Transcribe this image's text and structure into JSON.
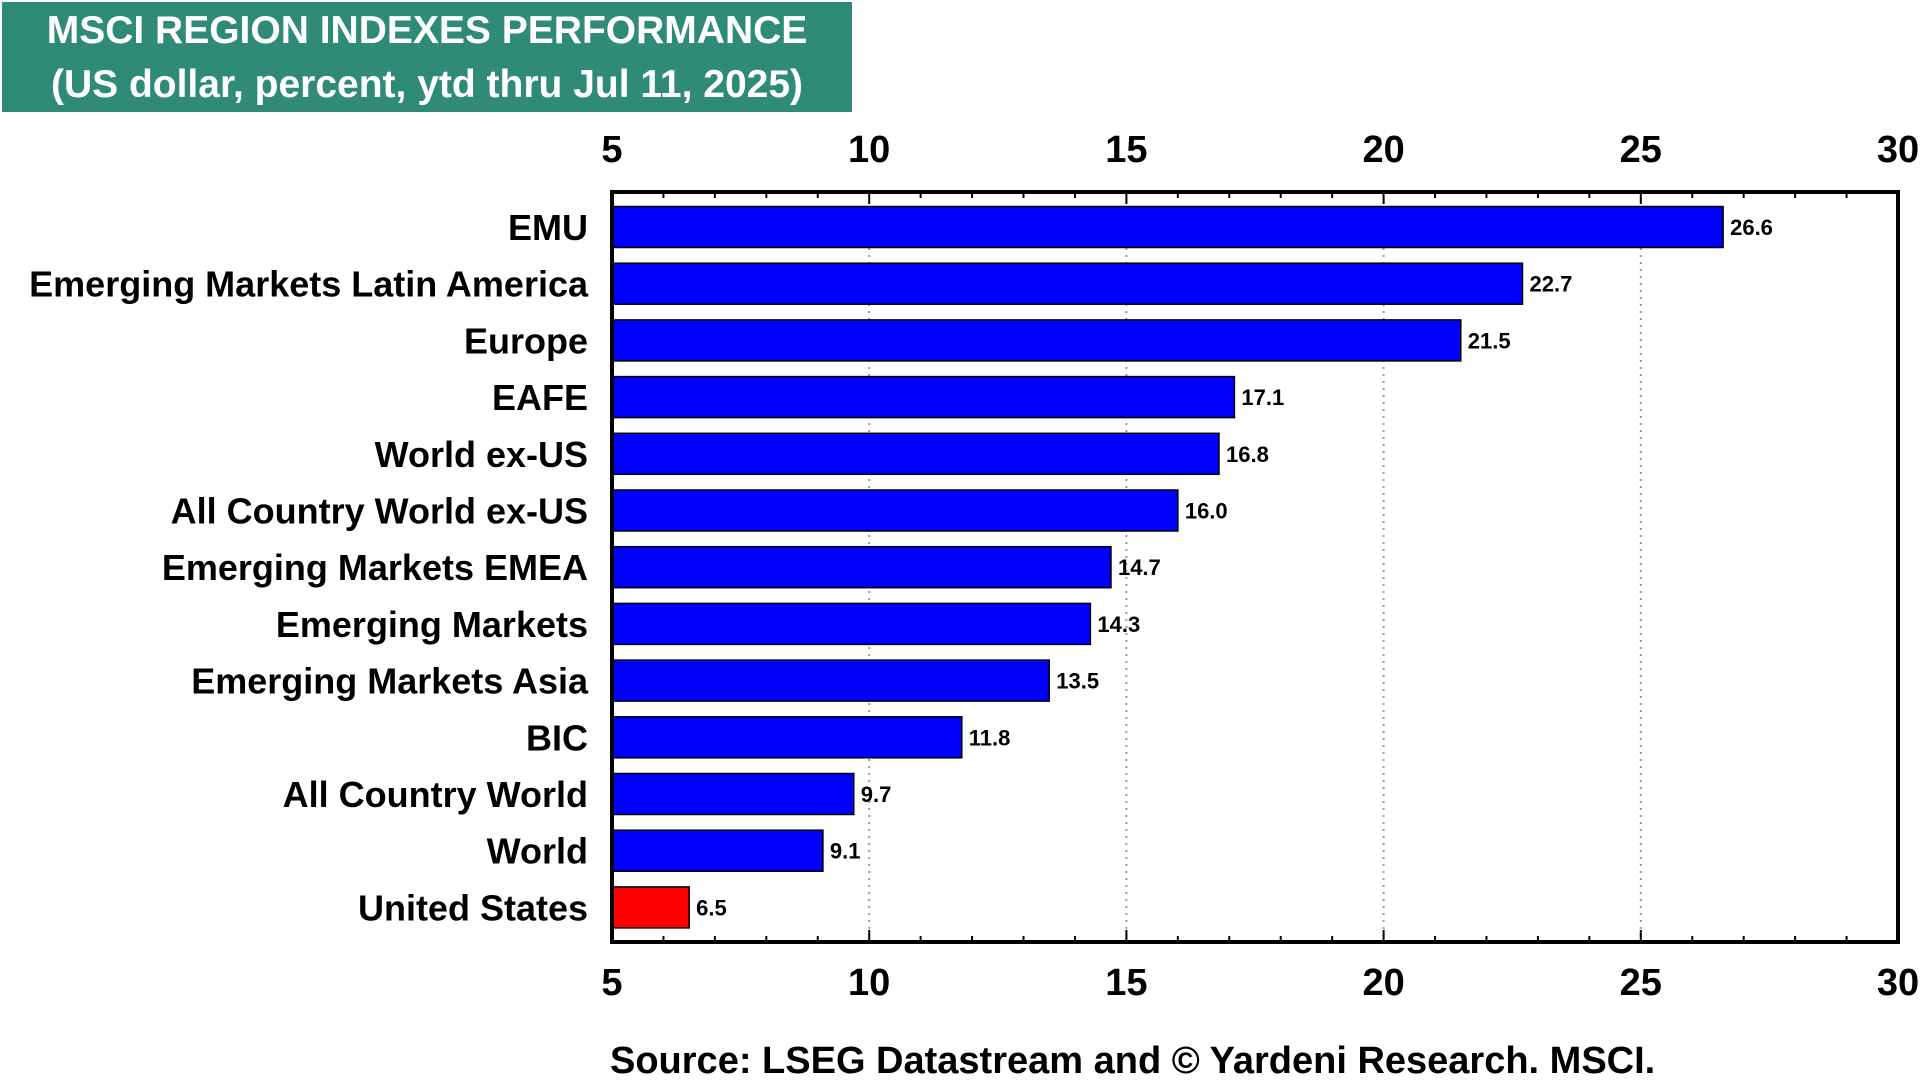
{
  "header": {
    "title_line1": "MSCI REGION INDEXES PERFORMANCE",
    "title_line2": "(US dollar, percent, ytd thru Jul 11, 2025)"
  },
  "footer": {
    "source": "Source: LSEG Datastream and © Yardeni Research. MSCI."
  },
  "colors": {
    "title_background": "#2f8a78",
    "bar_default": "#0000ff",
    "bar_highlight": "#ff0000"
  },
  "chart_data": {
    "type": "bar",
    "orientation": "horizontal",
    "title": "MSCI REGION INDEXES PERFORMANCE",
    "subtitle": "(US dollar, percent, ytd thru Jul 11, 2025)",
    "categories": [
      "EMU",
      "Emerging Markets Latin America",
      "Europe",
      "EAFE",
      "World ex-US",
      "All Country World ex-US",
      "Emerging Markets EMEA",
      "Emerging Markets",
      "Emerging Markets Asia",
      "BIC",
      "All Country World",
      "World",
      "United States"
    ],
    "values": [
      26.6,
      22.7,
      21.5,
      17.1,
      16.8,
      16.0,
      14.7,
      14.3,
      13.5,
      11.8,
      9.7,
      9.1,
      6.5
    ],
    "value_labels": [
      "26.6",
      "22.7",
      "21.5",
      "17.1",
      "16.8",
      "16.0",
      "14.7",
      "14.3",
      "13.5",
      "11.8",
      "9.7",
      "9.1",
      "6.5"
    ],
    "highlight_category": "United States",
    "xlim": [
      5,
      30
    ],
    "xticks": [
      5,
      10,
      15,
      20,
      25,
      30
    ],
    "xtick_labels": [
      "5",
      "10",
      "15",
      "20",
      "25",
      "30"
    ],
    "x_axis_position": "top and bottom",
    "grid": "vertical dotted",
    "legend": "none"
  }
}
